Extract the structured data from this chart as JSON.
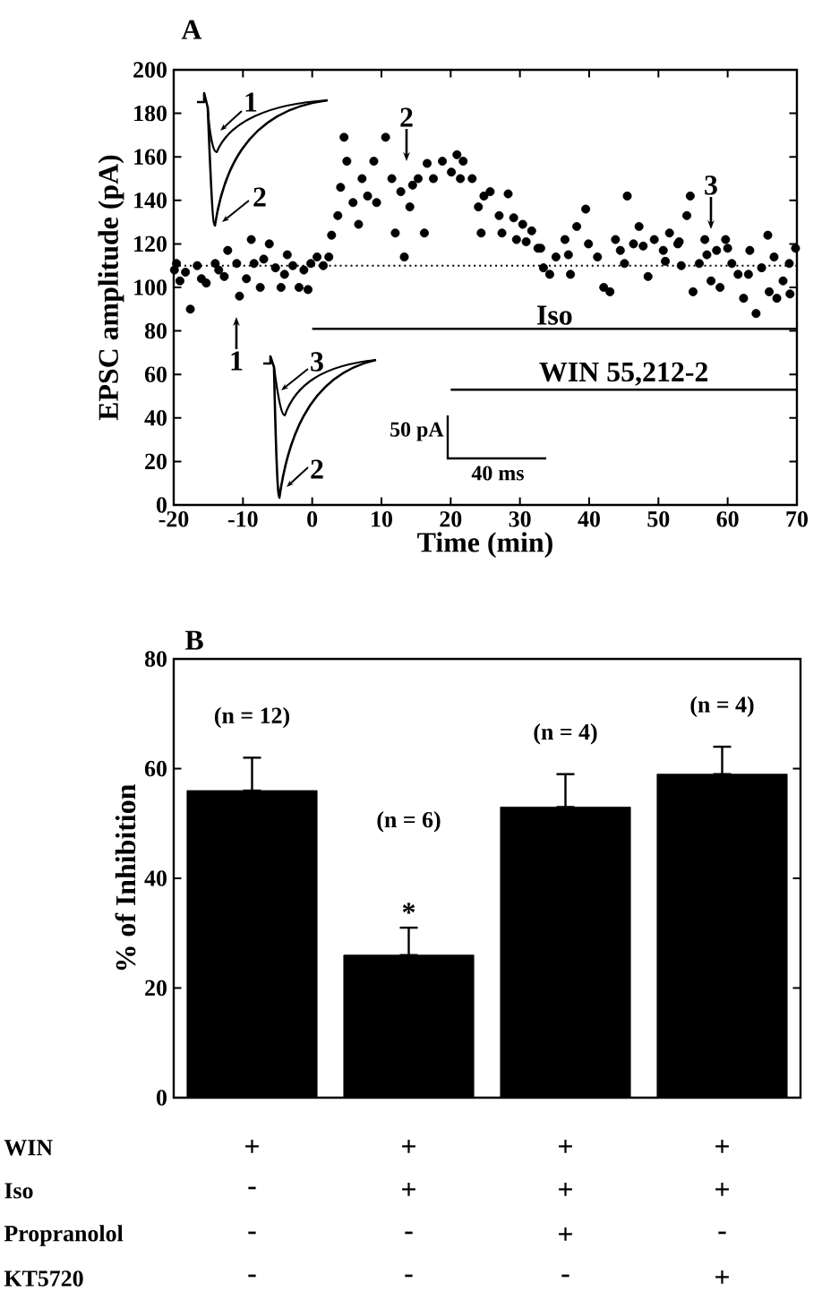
{
  "chart_data": [
    {
      "type": "scatter",
      "title": "A",
      "xlabel": "Time (min)",
      "ylabel": "EPSC amplitude (pA)",
      "xlim": [
        -20,
        70
      ],
      "ylim": [
        0,
        200
      ],
      "xticks": [
        -20,
        -10,
        0,
        10,
        20,
        30,
        40,
        50,
        60,
        70
      ],
      "yticks": [
        0,
        20,
        40,
        60,
        80,
        100,
        120,
        140,
        160,
        180,
        200
      ],
      "series": [
        {
          "type": "scatter",
          "color": "#000000",
          "x": [
            -19.9,
            -19.6,
            -19.1,
            -18.3,
            -17.6,
            -16.6,
            -16,
            -15.3,
            -14,
            -13.5,
            -12.7,
            -12.2,
            -10.9,
            -10.5,
            -9.5,
            -8.8,
            -8.4,
            -7.5,
            -7,
            -6.2,
            -5.3,
            -4.5,
            -4,
            -3.6,
            -2.8,
            -1.9,
            -1.2,
            -0.6,
            -0.2,
            0.7,
            1.6,
            2.4,
            2.8,
            3.7,
            4.1,
            4.6,
            5,
            5.9,
            6.7,
            7.2,
            8,
            8.9,
            9.3,
            10.6,
            11.5,
            12,
            12.8,
            13.3,
            14.1,
            14.5,
            15.3,
            16.2,
            16.6,
            17.5,
            18.8,
            20.1,
            20.9,
            21.4,
            21.8,
            23.1,
            24,
            24.4,
            24.8,
            25.7,
            27,
            27.4,
            28.3,
            29.1,
            29.5,
            30.4,
            30.9,
            31.7,
            32.6,
            33,
            33.4,
            34.3,
            35.2,
            36.5,
            37,
            37.3,
            38.2,
            39.5,
            39.9,
            41.2,
            42.1,
            43,
            43.8,
            44.5,
            45.1,
            45.5,
            46.4,
            47.2,
            47.8,
            48.5,
            49.4,
            50.7,
            51,
            51.6,
            52.8,
            53,
            53.3,
            54.1,
            54.6,
            55,
            55.9,
            56.7,
            57,
            57.6,
            58.4,
            58.9,
            59.7,
            60,
            60.6,
            61.5,
            62.3,
            63,
            63.2,
            64.1,
            64.9,
            65.8,
            66,
            66.7,
            67.1,
            68,
            68.9,
            69,
            69.8
          ],
          "values": [
            108,
            111,
            103,
            107,
            90,
            110,
            104,
            102,
            111,
            108,
            105,
            117,
            111,
            96,
            104,
            122,
            111,
            100,
            113,
            120,
            109,
            100,
            106,
            115,
            110,
            100,
            108,
            99,
            111,
            114,
            110,
            114,
            124,
            133,
            146,
            169,
            158,
            139,
            129,
            150,
            142,
            158,
            139,
            169,
            150,
            125,
            144,
            114,
            137,
            147,
            150,
            125,
            157,
            150,
            158,
            153,
            161,
            150,
            158,
            150,
            137,
            125,
            142,
            144,
            133,
            125,
            143,
            132,
            122,
            129,
            121,
            126,
            118,
            118,
            109,
            106,
            114,
            122,
            115,
            106,
            128,
            136,
            120,
            114,
            100,
            98,
            122,
            117,
            111,
            142,
            120,
            128,
            119,
            105,
            122,
            117,
            112,
            125,
            120,
            121,
            110,
            133,
            142,
            98,
            111,
            122,
            115,
            103,
            117,
            100,
            122,
            118,
            111,
            106,
            95,
            106,
            117,
            88,
            109,
            124,
            98,
            114,
            95,
            103,
            111,
            97,
            118
          ]
        },
        {
          "type": "line",
          "name": "Iso",
          "color": "#000000",
          "x": [
            0,
            70
          ],
          "values": [
            81,
            81
          ]
        },
        {
          "type": "line",
          "name": "WIN 55,212-2",
          "color": "#000000",
          "x": [
            20,
            70
          ],
          "values": [
            53,
            53
          ]
        }
      ],
      "ref_lines": [
        {
          "axis": "y",
          "value": 110,
          "line_style": "dotted",
          "color": "#000000"
        }
      ],
      "annotations": [
        "1",
        "2",
        "3",
        "1",
        "2",
        "3",
        "2",
        "50 pA",
        "40 ms"
      ]
    },
    {
      "type": "bar",
      "title": "B",
      "ylabel": "% of Inhibition",
      "categories": [
        null,
        null,
        null,
        null
      ],
      "values": [
        56,
        26,
        53,
        59
      ],
      "color": "#000000",
      "errors": [
        [
          56,
          62
        ],
        [
          26,
          31
        ],
        [
          53,
          59
        ],
        [
          59,
          64
        ]
      ],
      "ylim": [
        0,
        80
      ],
      "yticks": [
        0,
        20,
        40,
        60,
        80
      ],
      "annotations": [
        "(n = 12)",
        "(n = 6)",
        "(n = 4)",
        "(n = 4)",
        "*",
        "WIN",
        "Iso",
        "Propranolol",
        "KT5720",
        "+",
        "+",
        "+",
        "+",
        "-",
        "+",
        "+",
        "+",
        "-",
        "-",
        "+",
        "-",
        "-",
        "-",
        "-",
        "+"
      ]
    }
  ]
}
